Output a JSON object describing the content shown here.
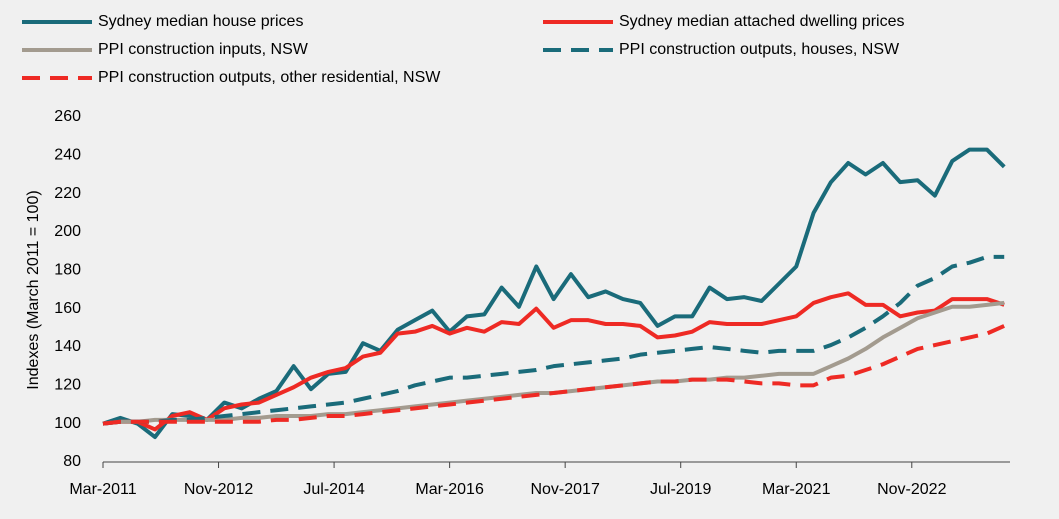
{
  "chart_data": {
    "type": "line",
    "y_label": "Indexes (March 2011 = 100)",
    "legend": "top",
    "xlim": [
      2011.1667,
      2024.25
    ],
    "xticks": [
      {
        "value": 2011.1667,
        "label": "Mar-2011"
      },
      {
        "value": 2012.8333,
        "label": "Nov-2012"
      },
      {
        "value": 2014.5,
        "label": "Jul-2014"
      },
      {
        "value": 2016.1667,
        "label": "Mar-2016"
      },
      {
        "value": 2017.8333,
        "label": "Nov-2017"
      },
      {
        "value": 2019.5,
        "label": "Jul-2019"
      },
      {
        "value": 2021.1667,
        "label": "Mar-2021"
      },
      {
        "value": 2022.8333,
        "label": "Nov-2022"
      }
    ],
    "ylim": [
      80,
      260
    ],
    "yticks": [
      80,
      100,
      120,
      140,
      160,
      180,
      200,
      220,
      240,
      260
    ],
    "x": [
      2011.1667,
      2011.4167,
      2011.6667,
      2011.9167,
      2012.1667,
      2012.4167,
      2012.6667,
      2012.9167,
      2013.1667,
      2013.4167,
      2013.6667,
      2013.9167,
      2014.1667,
      2014.4167,
      2014.6667,
      2014.9167,
      2015.1667,
      2015.4167,
      2015.6667,
      2015.9167,
      2016.1667,
      2016.4167,
      2016.6667,
      2016.9167,
      2017.1667,
      2017.4167,
      2017.6667,
      2017.9167,
      2018.1667,
      2018.4167,
      2018.6667,
      2018.9167,
      2019.1667,
      2019.4167,
      2019.6667,
      2019.9167,
      2020.1667,
      2020.4167,
      2020.6667,
      2020.9167,
      2021.1667,
      2021.4167,
      2021.6667,
      2021.9167,
      2022.1667,
      2022.4167,
      2022.6667,
      2022.9167,
      2023.1667,
      2023.4167,
      2023.6667,
      2023.9167,
      2024.1667
    ],
    "series": [
      {
        "name": "Sydney median house prices",
        "color": "#1a6b7a",
        "dash": false,
        "values": [
          100,
          103,
          100,
          93,
          105,
          104,
          102,
          111,
          108,
          113,
          117,
          130,
          118,
          126,
          127,
          142,
          138,
          149,
          154,
          159,
          148,
          156,
          157,
          171,
          161,
          182,
          165,
          178,
          166,
          169,
          165,
          163,
          151,
          156,
          156,
          171,
          165,
          166,
          164,
          173,
          182,
          210,
          226,
          236,
          230,
          236,
          226,
          227,
          219,
          237,
          243,
          243,
          234
        ]
      },
      {
        "name": "Sydney median attached dwelling prices",
        "color": "#ee2a24",
        "dash": false,
        "values": [
          100,
          101,
          101,
          97,
          104,
          106,
          102,
          108,
          110,
          111,
          115,
          119,
          124,
          127,
          129,
          135,
          137,
          147,
          148,
          151,
          147,
          150,
          148,
          153,
          152,
          160,
          150,
          154,
          154,
          152,
          152,
          151,
          145,
          146,
          148,
          153,
          152,
          152,
          152,
          154,
          156,
          163,
          166,
          168,
          162,
          162,
          156,
          158,
          159,
          165,
          165,
          165,
          162
        ]
      },
      {
        "name": "PPI construction inputs, NSW",
        "color": "#a39b8f",
        "dash": false,
        "values": [
          100,
          101,
          101,
          102,
          102,
          102,
          102,
          102,
          103,
          103,
          104,
          104,
          104,
          105,
          105,
          106,
          107,
          108,
          109,
          110,
          111,
          112,
          113,
          114,
          115,
          116,
          116,
          117,
          118,
          119,
          120,
          121,
          122,
          122,
          123,
          123,
          124,
          124,
          125,
          126,
          126,
          126,
          130,
          134,
          139,
          145,
          150,
          155,
          158,
          161,
          161,
          162,
          163
        ]
      },
      {
        "name": "PPI construction outputs, houses, NSW",
        "color": "#1a6b7a",
        "dash": true,
        "values": [
          100,
          101,
          101,
          101,
          102,
          102,
          103,
          104,
          105,
          106,
          107,
          108,
          109,
          110,
          111,
          113,
          115,
          117,
          120,
          122,
          124,
          124,
          125,
          126,
          127,
          128,
          130,
          131,
          132,
          133,
          134,
          136,
          137,
          138,
          139,
          140,
          139,
          138,
          137,
          138,
          138,
          138,
          141,
          145,
          150,
          156,
          163,
          172,
          176,
          182,
          184,
          187,
          187
        ]
      },
      {
        "name": "PPI construction outputs, other residential, NSW",
        "color": "#ee2a24",
        "dash": true,
        "values": [
          100,
          101,
          101,
          101,
          101,
          101,
          101,
          101,
          101,
          101,
          102,
          102,
          103,
          104,
          104,
          105,
          106,
          107,
          108,
          109,
          110,
          111,
          112,
          113,
          114,
          115,
          116,
          117,
          118,
          119,
          120,
          121,
          122,
          122,
          123,
          123,
          123,
          122,
          121,
          121,
          120,
          120,
          124,
          125,
          128,
          131,
          135,
          139,
          141,
          143,
          145,
          147,
          151
        ]
      }
    ]
  }
}
